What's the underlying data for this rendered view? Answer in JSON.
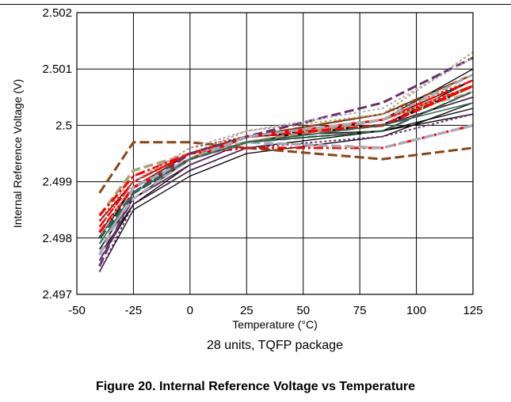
{
  "caption": "Figure 20. Internal Reference Voltage vs Temperature",
  "chart_data": {
    "type": "line",
    "title": "",
    "xlabel": "Temperature (°C)",
    "ylabel": "Internal Reference Voltage (V)",
    "annotation": "28 units, TQFP package",
    "xlim": [
      -50,
      125
    ],
    "ylim": [
      2.497,
      2.502
    ],
    "xticks": [
      -50,
      -25,
      0,
      25,
      50,
      75,
      100,
      125
    ],
    "yticks": [
      2.497,
      2.498,
      2.499,
      2.5,
      2.501,
      2.502
    ],
    "ytick_labels": [
      "2.497",
      "2.498",
      "2.499",
      "2.5",
      "2.501",
      "2.502"
    ],
    "grid": true,
    "x": [
      -40,
      -25,
      0,
      25,
      85,
      125
    ],
    "series": [
      {
        "values": [
          2.4974,
          2.4985,
          2.4991,
          2.4995,
          2.4998,
          2.5004
        ],
        "color": "#000000",
        "dash": "solid",
        "width": 1.3
      },
      {
        "values": [
          2.4976,
          2.4986,
          2.4992,
          2.4996,
          2.4999,
          2.5006
        ],
        "color": "#000000",
        "dash": "solid",
        "width": 1.3
      },
      {
        "values": [
          2.4978,
          2.4987,
          2.4993,
          2.4997,
          2.4999,
          2.5002
        ],
        "color": "#000000",
        "dash": "solid",
        "width": 1.3
      },
      {
        "values": [
          2.4979,
          2.4988,
          2.4994,
          2.4997,
          2.5001,
          2.5008
        ],
        "color": "#000000",
        "dash": "solid",
        "width": 1.3
      },
      {
        "values": [
          2.498,
          2.4988,
          2.4994,
          2.4998,
          2.5,
          2.5007
        ],
        "color": "#000000",
        "dash": "dash",
        "width": 3.5
      },
      {
        "values": [
          2.4981,
          2.4989,
          2.4995,
          2.4998,
          2.5002,
          2.5009
        ],
        "color": "#000000",
        "dash": "solid",
        "width": 1.3
      },
      {
        "values": [
          2.4977,
          2.4986,
          2.4993,
          2.4997,
          2.5,
          2.5005
        ],
        "color": "#000000",
        "dash": "solid",
        "width": 1.3
      },
      {
        "values": [
          2.4983,
          2.499,
          2.4995,
          2.4998,
          2.4999,
          2.5003
        ],
        "color": "#000000",
        "dash": "solid",
        "width": 1.3
      },
      {
        "values": [
          2.498,
          2.4989,
          2.4995,
          2.4998,
          2.5001,
          2.501
        ],
        "color": "#000000",
        "dash": "solid",
        "width": 1.3
      },
      {
        "values": [
          2.4978,
          2.4987,
          2.4994,
          2.4997,
          2.5,
          2.5008
        ],
        "color": "#000000",
        "dash": "solid",
        "width": 1.3
      },
      {
        "values": [
          2.4988,
          2.4997,
          2.4997,
          2.4996,
          2.4994,
          2.4996
        ],
        "color": "#8b4513",
        "dash": "dash",
        "width": 3
      },
      {
        "values": [
          2.4982,
          2.499,
          2.4996,
          2.4998,
          2.5002,
          2.5008
        ],
        "color": "#8b4513",
        "dash": "dot",
        "width": 2
      },
      {
        "values": [
          2.4981,
          2.4989,
          2.4995,
          2.4998,
          2.5002,
          2.5009
        ],
        "color": "#8b4513",
        "dash": "dash",
        "width": 2.5
      },
      {
        "values": [
          2.4984,
          2.4992,
          2.4995,
          2.4997,
          2.5001,
          2.5007
        ],
        "color": "#b0a070",
        "dash": "dash",
        "width": 3.5
      },
      {
        "values": [
          2.4983,
          2.4991,
          2.4995,
          2.4999,
          2.5002,
          2.5013
        ],
        "color": "#b0a070",
        "dash": "dot",
        "width": 2
      },
      {
        "values": [
          2.4982,
          2.499,
          2.4995,
          2.4998,
          2.5001,
          2.5006
        ],
        "color": "#b0a070",
        "dash": "dash",
        "width": 2
      },
      {
        "values": [
          2.4984,
          2.4991,
          2.4995,
          2.4996,
          2.4996,
          2.5
        ],
        "color": "#ff0000",
        "dash": "dashdot",
        "width": 3
      },
      {
        "values": [
          2.4983,
          2.499,
          2.4995,
          2.4998,
          2.5001,
          2.5007
        ],
        "color": "#ff0000",
        "dash": "dot",
        "width": 2.5
      },
      {
        "values": [
          2.4982,
          2.499,
          2.4995,
          2.4998,
          2.5001,
          2.5008
        ],
        "color": "#ff0000",
        "dash": "dash",
        "width": 2.5
      },
      {
        "values": [
          2.4981,
          2.4989,
          2.4994,
          2.4998,
          2.5,
          2.5007
        ],
        "color": "#ff0000",
        "dash": "dash",
        "width": 3.5
      },
      {
        "values": [
          2.4975,
          2.4988,
          2.4995,
          2.4998,
          2.5004,
          2.5012
        ],
        "color": "#6b2d6b",
        "dash": "dash",
        "width": 3
      },
      {
        "values": [
          2.4974,
          2.4986,
          2.4992,
          2.4996,
          2.4998,
          2.5002
        ],
        "color": "#6b2d6b",
        "dash": "dot",
        "width": 2
      },
      {
        "values": [
          2.4976,
          2.4987,
          2.4993,
          2.4997,
          2.5,
          2.5005
        ],
        "color": "#6b2d6b",
        "dash": "dash",
        "width": 2
      },
      {
        "values": [
          2.4977,
          2.4989,
          2.4994,
          2.4997,
          2.4996,
          2.5
        ],
        "color": "#a9a9b8",
        "dash": "dash",
        "width": 3.5
      },
      {
        "values": [
          2.4979,
          2.4987,
          2.4994,
          2.4998,
          2.5001,
          2.5009
        ],
        "color": "#a9a9b8",
        "dash": "dash",
        "width": 3
      },
      {
        "values": [
          2.498,
          2.499,
          2.4996,
          2.4999,
          2.5003,
          2.5012
        ],
        "color": "#a9a9b8",
        "dash": "dot",
        "width": 2
      },
      {
        "values": [
          2.498,
          2.4988,
          2.4994,
          2.4997,
          2.4999,
          2.5006
        ],
        "color": "#2e6b4f",
        "dash": "dash",
        "width": 2.5
      },
      {
        "values": [
          2.4979,
          2.4988,
          2.4994,
          2.4997,
          2.5,
          2.5004
        ],
        "color": "#2e6b4f",
        "dash": "solid",
        "width": 1.5
      }
    ]
  }
}
